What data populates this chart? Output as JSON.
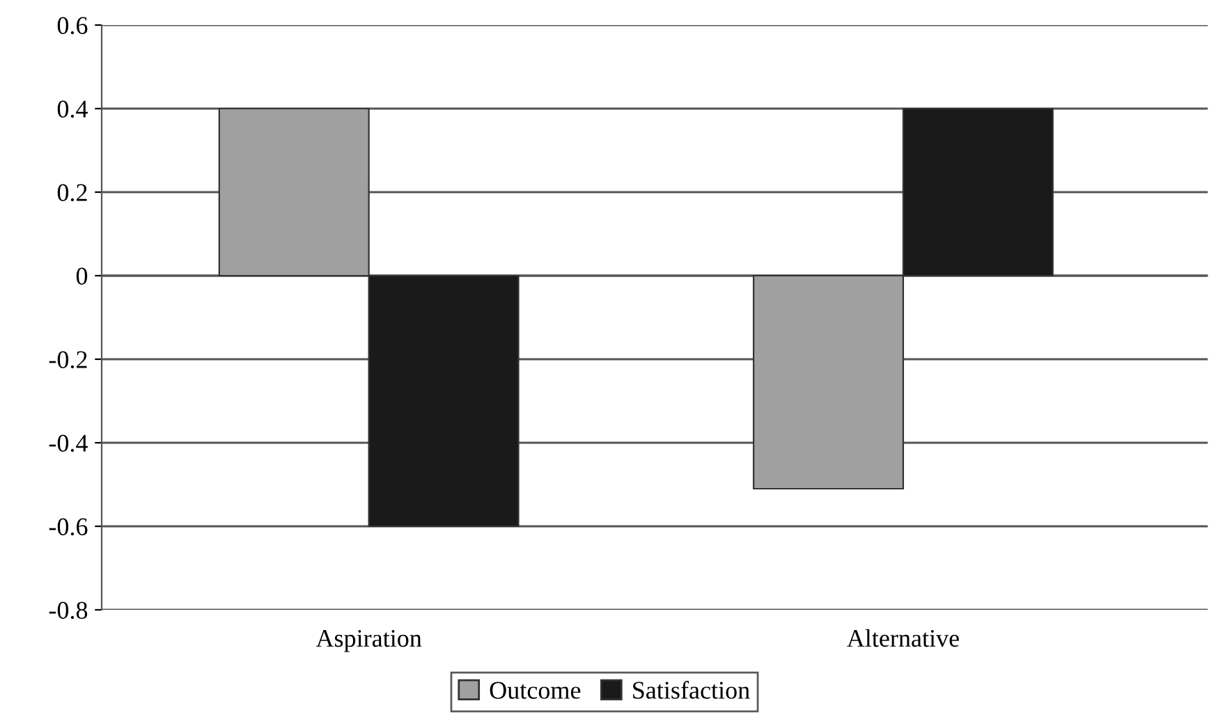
{
  "chart_data": {
    "type": "bar",
    "categories": [
      "Aspiration",
      "Alternative"
    ],
    "series": [
      {
        "name": "Outcome",
        "color": "#a0a0a0",
        "values": [
          0.4,
          -0.51
        ]
      },
      {
        "name": "Satisfaction",
        "color": "#1a1a1a",
        "values": [
          -0.6,
          0.4
        ]
      }
    ],
    "ylim": [
      -0.8,
      0.6
    ],
    "yticks": [
      {
        "value": -0.8,
        "label": "-0.8"
      },
      {
        "value": -0.6,
        "label": "-0.6"
      },
      {
        "value": -0.4,
        "label": "-0.4"
      },
      {
        "value": -0.2,
        "label": "-0.2"
      },
      0,
      0.2,
      0.4,
      0.6
    ],
    "grid": "y",
    "legend": "bottom"
  }
}
